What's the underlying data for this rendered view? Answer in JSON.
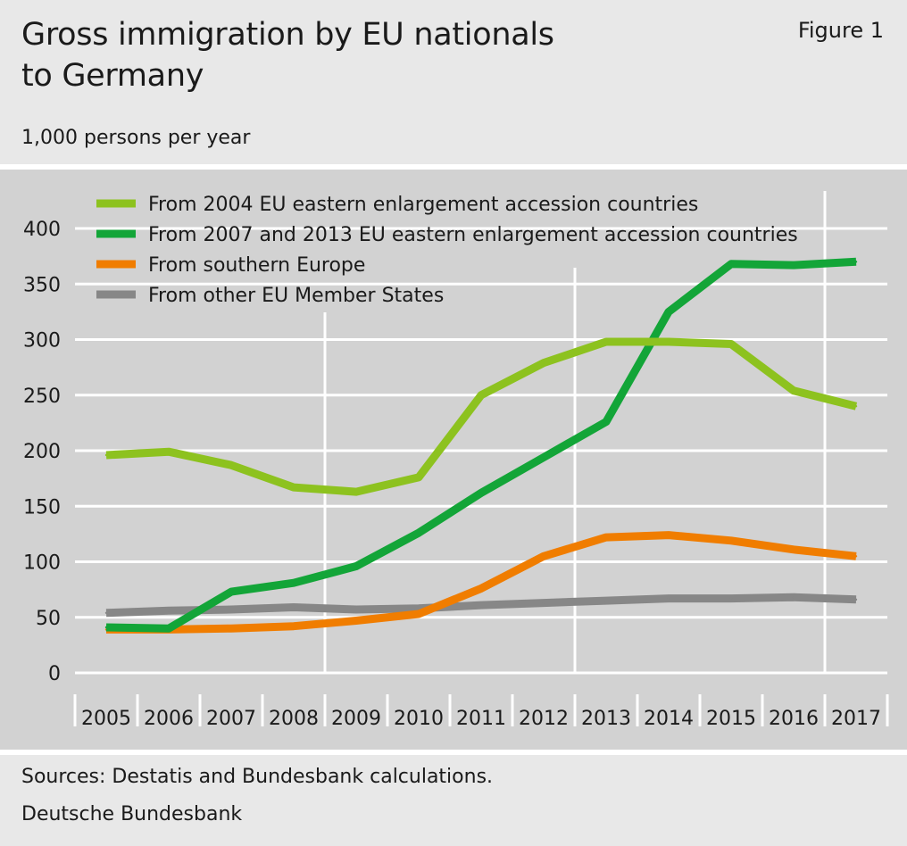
{
  "header": {
    "title_line1": "Gross immigration by EU nationals",
    "title_line2": "to Germany",
    "figure_label": "Figure 1",
    "unit": "1,000 persons per year"
  },
  "footer": {
    "source": "Sources: Destatis and Bundesbank calculations.",
    "publisher": "Deutsche Bundesbank"
  },
  "colors": {
    "panel_background": "#d2d2d2",
    "grid": "#ffffff"
  },
  "chart_data": {
    "type": "line",
    "x": [
      "2005",
      "2006",
      "2007",
      "2008",
      "2009",
      "2010",
      "2011",
      "2012",
      "2013",
      "2014",
      "2015",
      "2016",
      "2017"
    ],
    "ylim": [
      0,
      400
    ],
    "yticks": [
      0,
      50,
      100,
      150,
      200,
      250,
      300,
      350,
      400
    ],
    "grid": true,
    "legend_position": "top-left",
    "series": [
      {
        "name": "From 2004 EU eastern enlargement accession countries",
        "color": "#8dc21f",
        "values": [
          196,
          199,
          187,
          167,
          163,
          176,
          250,
          279,
          298,
          298,
          296,
          254,
          240
        ]
      },
      {
        "name": "From 2007 and 2013 EU eastern enlargement accession countries",
        "color": "#13a538",
        "values": [
          41,
          40,
          73,
          81,
          96,
          126,
          162,
          194,
          226,
          325,
          368,
          367,
          370
        ]
      },
      {
        "name": "From southern Europe",
        "color": "#f07d00",
        "values": [
          39,
          39,
          40,
          42,
          47,
          53,
          76,
          105,
          122,
          124,
          119,
          111,
          105
        ]
      },
      {
        "name": "From other EU Member States",
        "color": "#878787",
        "values": [
          54,
          56,
          57,
          59,
          57,
          58,
          61,
          63,
          65,
          67,
          67,
          68,
          66
        ]
      }
    ]
  }
}
